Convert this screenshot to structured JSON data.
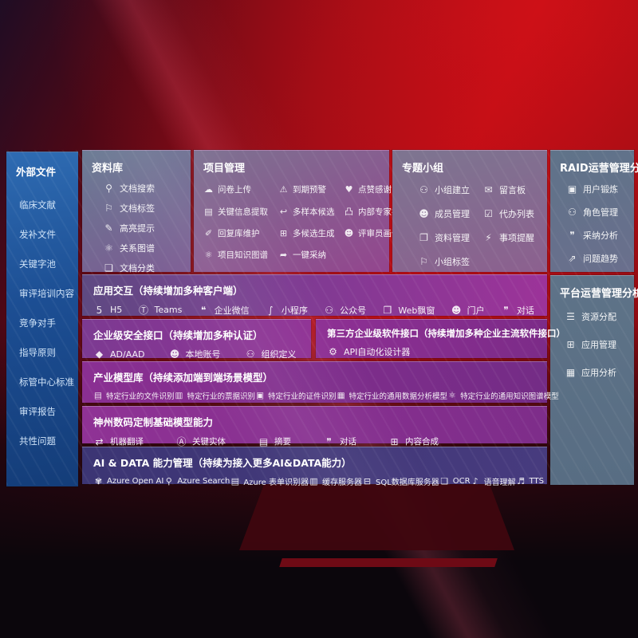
{
  "sidebar": {
    "title": "外部文件",
    "items": [
      {
        "name": "clinical-literature",
        "label": "临床文献"
      },
      {
        "name": "supplement-files",
        "label": "发补文件"
      },
      {
        "name": "keyword-pool",
        "label": "关键字池"
      },
      {
        "name": "review-training-content",
        "label": "审评培训内容"
      },
      {
        "name": "competitors",
        "label": "竞争对手"
      },
      {
        "name": "guidelines",
        "label": "指导原则"
      },
      {
        "name": "csc-center-standards",
        "label": "标管中心标准"
      },
      {
        "name": "review-reports",
        "label": "审评报告"
      },
      {
        "name": "common-issues",
        "label": "共性问题"
      }
    ]
  },
  "panels": {
    "library": {
      "title": "资料库",
      "items": [
        {
          "name": "doc-search",
          "glyph": "⚲",
          "label": "文档搜索"
        },
        {
          "name": "doc-tags",
          "glyph": "⚐",
          "label": "文档标签"
        },
        {
          "name": "highlight-hint",
          "glyph": "✎",
          "label": "高亮提示"
        },
        {
          "name": "relation-graph",
          "glyph": "⚛",
          "label": "关系图谱"
        },
        {
          "name": "doc-classify",
          "glyph": "❏",
          "label": "文档分类"
        }
      ]
    },
    "project": {
      "title": "项目管理",
      "items": [
        {
          "name": "survey-upload",
          "glyph": "☁",
          "label": "问卷上传"
        },
        {
          "name": "due-warning",
          "glyph": "⚠",
          "label": "到期预警"
        },
        {
          "name": "like-thanks",
          "glyph": "♥",
          "label": "点赞感谢"
        },
        {
          "name": "key-info-extract",
          "glyph": "▤",
          "label": "关键信息提取"
        },
        {
          "name": "multi-sample-candidate",
          "glyph": "↩",
          "label": "多样本候选"
        },
        {
          "name": "internal-expert-ranking",
          "glyph": "凸",
          "label": "内部专家排名"
        },
        {
          "name": "reply-lib-maintain",
          "glyph": "✐",
          "label": "回复库维护"
        },
        {
          "name": "multi-candidate-gen",
          "glyph": "⊞",
          "label": "多候选生成"
        },
        {
          "name": "reviewer-profile",
          "glyph": "☻",
          "label": "评审员画像"
        },
        {
          "name": "project-knowledge-graph",
          "glyph": "⚛",
          "label": "项目知识图谱"
        },
        {
          "name": "one-click-adopt",
          "glyph": "➦",
          "label": "一键采纳"
        }
      ]
    },
    "group": {
      "title": "专题小组",
      "items": [
        {
          "name": "group-create",
          "glyph": "⚇",
          "label": "小组建立"
        },
        {
          "name": "message-board",
          "glyph": "✉",
          "label": "留言板"
        },
        {
          "name": "member-manage",
          "glyph": "☻",
          "label": "成员管理"
        },
        {
          "name": "todo-list",
          "glyph": "☑",
          "label": "代办列表"
        },
        {
          "name": "material-manage",
          "glyph": "❐",
          "label": "资料管理"
        },
        {
          "name": "item-reminder",
          "glyph": "⚡",
          "label": "事项提醒"
        },
        {
          "name": "group-tags",
          "glyph": "⚐",
          "label": "小组标签"
        }
      ]
    },
    "raid": {
      "title": "RAID运营管理分析",
      "items": [
        {
          "name": "user-refinement",
          "glyph": "▣",
          "label": "用户锻炼"
        },
        {
          "name": "role-manage",
          "glyph": "⚇",
          "label": "角色管理"
        },
        {
          "name": "adoption-analysis",
          "glyph": "❞",
          "label": "采纳分析"
        },
        {
          "name": "issue-trend",
          "glyph": "⇗",
          "label": "问题趋势"
        }
      ]
    },
    "platform": {
      "title": "平台运营管理分析",
      "items": [
        {
          "name": "resource-allocation",
          "glyph": "☰",
          "label": "资源分配"
        },
        {
          "name": "app-manage",
          "glyph": "⊞",
          "label": "应用管理"
        },
        {
          "name": "app-analysis",
          "glyph": "▦",
          "label": "应用分析"
        }
      ]
    }
  },
  "rows": {
    "interaction": {
      "title": "应用交互（持续增加多种客户端）",
      "items": [
        {
          "name": "h5-client",
          "glyph": "5",
          "label": "H5"
        },
        {
          "name": "teams-client",
          "glyph": "Ⓣ",
          "label": "Teams"
        },
        {
          "name": "wecom-client",
          "glyph": "❝",
          "label": "企业微信"
        },
        {
          "name": "mini-program",
          "glyph": "∫",
          "label": "小程序"
        },
        {
          "name": "official-account",
          "glyph": "⚇",
          "label": "公众号"
        },
        {
          "name": "web-popup",
          "glyph": "❐",
          "label": "Web飘窗"
        },
        {
          "name": "portal",
          "glyph": "☻",
          "label": "门户"
        },
        {
          "name": "dialogue-client",
          "glyph": "❞",
          "label": "对话"
        }
      ]
    },
    "security": {
      "title": "企业级安全接口（持续增加多种认证）",
      "items": [
        {
          "name": "ad-aad-auth",
          "glyph": "◆",
          "label": "AD/AAD"
        },
        {
          "name": "local-account",
          "glyph": "☻",
          "label": "本地账号"
        },
        {
          "name": "org-definition",
          "glyph": "⚇",
          "label": "组织定义"
        }
      ]
    },
    "thirdparty": {
      "title": "第三方企业级软件接口（持续增加多种企业主流软件接口）",
      "items": [
        {
          "name": "api-auto-designer",
          "glyph": "⚙",
          "label": "API自动化设计器"
        }
      ]
    },
    "industry": {
      "title": "产业模型库（持续添加端到端场景模型）",
      "items": [
        {
          "name": "industry-doc-recognition",
          "glyph": "▤",
          "label": "特定行业的文件识别"
        },
        {
          "name": "industry-invoice-recognition",
          "glyph": "▥",
          "label": "特定行业的票据识别"
        },
        {
          "name": "industry-id-recognition",
          "glyph": "▣",
          "label": "特定行业的证件识别"
        },
        {
          "name": "industry-data-analysis-model",
          "glyph": "▦",
          "label": "特定行业的通用数据分析模型"
        },
        {
          "name": "industry-knowledge-graph-model",
          "glyph": "⚛",
          "label": "特定行业的通用知识图谱模型"
        }
      ]
    },
    "base": {
      "title": "神州数码定制基础模型能力",
      "items": [
        {
          "name": "machine-translation",
          "glyph": "⇄",
          "label": "机器翻译"
        },
        {
          "name": "key-entities",
          "glyph": "Ⓐ",
          "label": "关键实体"
        },
        {
          "name": "summary",
          "glyph": "▤",
          "label": "摘要"
        },
        {
          "name": "dialogue-capability",
          "glyph": "❞",
          "label": "对话"
        },
        {
          "name": "content-synthesis",
          "glyph": "⊞",
          "label": "内容合成"
        }
      ]
    },
    "aidata": {
      "title": "AI & DATA 能力管理（持续为接入更多AI&DATA能力）",
      "items": [
        {
          "name": "azure-openai",
          "glyph": "✾",
          "label": "Azure Open AI"
        },
        {
          "name": "azure-search",
          "glyph": "⚲",
          "label": "Azure Search"
        },
        {
          "name": "azure-form-recognizer",
          "glyph": "▤",
          "label": "Azure 表单识别器"
        },
        {
          "name": "cache-server",
          "glyph": "▥",
          "label": "缓存服务器"
        },
        {
          "name": "sql-db-server",
          "glyph": "⊟",
          "label": "SQL数据库服务器"
        },
        {
          "name": "ocr",
          "glyph": "❏",
          "label": "OCR"
        },
        {
          "name": "speech-understanding",
          "glyph": "♪",
          "label": "语音理解"
        },
        {
          "name": "tts",
          "glyph": "♬",
          "label": "TTS"
        }
      ]
    }
  }
}
